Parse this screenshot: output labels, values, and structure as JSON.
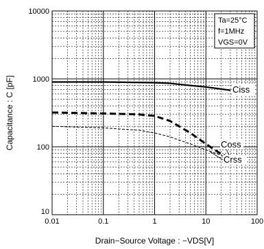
{
  "chart_data": {
    "type": "line",
    "x_scale": "log",
    "y_scale": "log",
    "xlim": [
      0.01,
      100
    ],
    "ylim": [
      10,
      10000
    ],
    "xlabel": "Drain−Source Voltage : −VDS[V]",
    "ylabel": "Capacitance : C [pF]",
    "x_tick_labels": [
      "0.01",
      "0.1",
      "1",
      "10",
      "100"
    ],
    "y_tick_labels": [
      "10",
      "100",
      "1000",
      "10000"
    ],
    "grid": true,
    "conditions": [
      "Ta=25°C",
      "f=1MHz",
      "VGS=0V"
    ],
    "series": [
      {
        "name": "Ciss",
        "line_style": "solid",
        "x": [
          0.01,
          0.1,
          1,
          2,
          5,
          10,
          30
        ],
        "y": [
          900,
          900,
          880,
          860,
          800,
          760,
          680
        ]
      },
      {
        "name": "Coss",
        "line_style": "dashed",
        "x": [
          0.01,
          0.1,
          0.5,
          1,
          2,
          5,
          10,
          20,
          30
        ],
        "y": [
          320,
          310,
          300,
          285,
          240,
          160,
          110,
          78,
          68
        ]
      },
      {
        "name": "Crss",
        "line_style": "short-dashed",
        "x": [
          0.01,
          0.1,
          0.5,
          1,
          2,
          5,
          10,
          20,
          30
        ],
        "y": [
          200,
          190,
          175,
          160,
          140,
          110,
          90,
          75,
          65
        ]
      }
    ]
  }
}
